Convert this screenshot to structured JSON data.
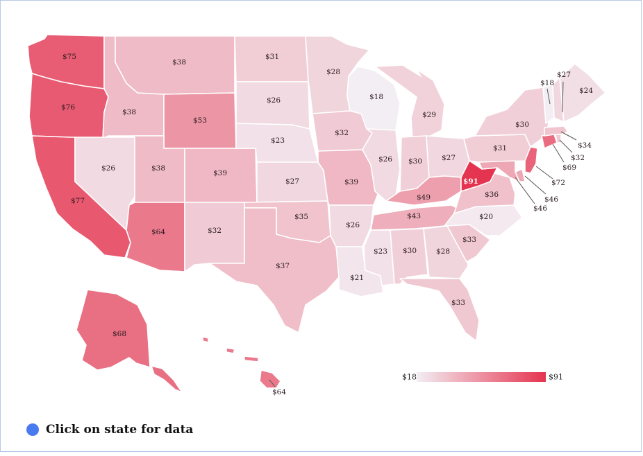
{
  "map": {
    "scale": {
      "min_label": "$18",
      "max_label": "$91",
      "min_value": 18,
      "max_value": 91,
      "color_low": "#f3eef3",
      "color_high": "#e5344f"
    },
    "states": [
      {
        "id": "WA",
        "value": 75,
        "label": "$75"
      },
      {
        "id": "OR",
        "value": 76,
        "label": "$76"
      },
      {
        "id": "CA",
        "value": 77,
        "label": "$77"
      },
      {
        "id": "ID",
        "value": 38,
        "label": "$38"
      },
      {
        "id": "NV",
        "value": 26,
        "label": "$26"
      },
      {
        "id": "MT",
        "value": 38,
        "label": "$38"
      },
      {
        "id": "WY",
        "value": 53,
        "label": "$53"
      },
      {
        "id": "UT",
        "value": 38,
        "label": "$38"
      },
      {
        "id": "AZ",
        "value": 64,
        "label": "$64"
      },
      {
        "id": "CO",
        "value": 39,
        "label": "$39"
      },
      {
        "id": "NM",
        "value": 32,
        "label": "$32"
      },
      {
        "id": "ND",
        "value": 31,
        "label": "$31"
      },
      {
        "id": "SD",
        "value": 26,
        "label": "$26"
      },
      {
        "id": "NE",
        "value": 23,
        "label": "$23"
      },
      {
        "id": "KS",
        "value": 27,
        "label": "$27"
      },
      {
        "id": "OK",
        "value": 35,
        "label": "$35"
      },
      {
        "id": "TX",
        "value": 37,
        "label": "$37"
      },
      {
        "id": "MN",
        "value": 28,
        "label": "$28"
      },
      {
        "id": "IA",
        "value": 32,
        "label": "$32"
      },
      {
        "id": "MO",
        "value": 39,
        "label": "$39"
      },
      {
        "id": "AR",
        "value": 26,
        "label": "$26"
      },
      {
        "id": "LA",
        "value": 21,
        "label": "$21"
      },
      {
        "id": "WI",
        "value": 18,
        "label": "$18"
      },
      {
        "id": "IL",
        "value": 26,
        "label": "$26"
      },
      {
        "id": "MI",
        "value": 29,
        "label": "$29"
      },
      {
        "id": "IN",
        "value": 30,
        "label": "$30"
      },
      {
        "id": "OH",
        "value": 27,
        "label": "$27"
      },
      {
        "id": "KY",
        "value": 49,
        "label": "$49"
      },
      {
        "id": "TN",
        "value": 43,
        "label": "$43"
      },
      {
        "id": "MS",
        "value": 23,
        "label": "$23"
      },
      {
        "id": "AL",
        "value": 30,
        "label": "$30"
      },
      {
        "id": "GA",
        "value": 28,
        "label": "$28"
      },
      {
        "id": "FL",
        "value": 33,
        "label": "$33"
      },
      {
        "id": "SC",
        "value": 33,
        "label": "$33"
      },
      {
        "id": "NC",
        "value": 20,
        "label": "$20"
      },
      {
        "id": "VA",
        "value": 36,
        "label": "$36"
      },
      {
        "id": "WV",
        "value": 91,
        "label": "$91"
      },
      {
        "id": "PA",
        "value": 31,
        "label": "$31"
      },
      {
        "id": "NY",
        "value": 30,
        "label": "$30"
      },
      {
        "id": "NJ",
        "value": 72,
        "label": "$72"
      },
      {
        "id": "DE",
        "value": 46,
        "label": "$46"
      },
      {
        "id": "MD",
        "value": 46,
        "label": "$46"
      },
      {
        "id": "CT",
        "value": 69,
        "label": "$69"
      },
      {
        "id": "RI",
        "value": 32,
        "label": "$32"
      },
      {
        "id": "MA",
        "value": 34,
        "label": "$34"
      },
      {
        "id": "VT",
        "value": 18,
        "label": "$18"
      },
      {
        "id": "NH",
        "value": 27,
        "label": "$27"
      },
      {
        "id": "ME",
        "value": 24,
        "label": "$24"
      },
      {
        "id": "AK",
        "value": 68,
        "label": "$68"
      },
      {
        "id": "HI",
        "value": 64,
        "label": "$64"
      }
    ]
  },
  "footer": {
    "text": "Click on state for data",
    "dot_color": "#4a7af0"
  }
}
